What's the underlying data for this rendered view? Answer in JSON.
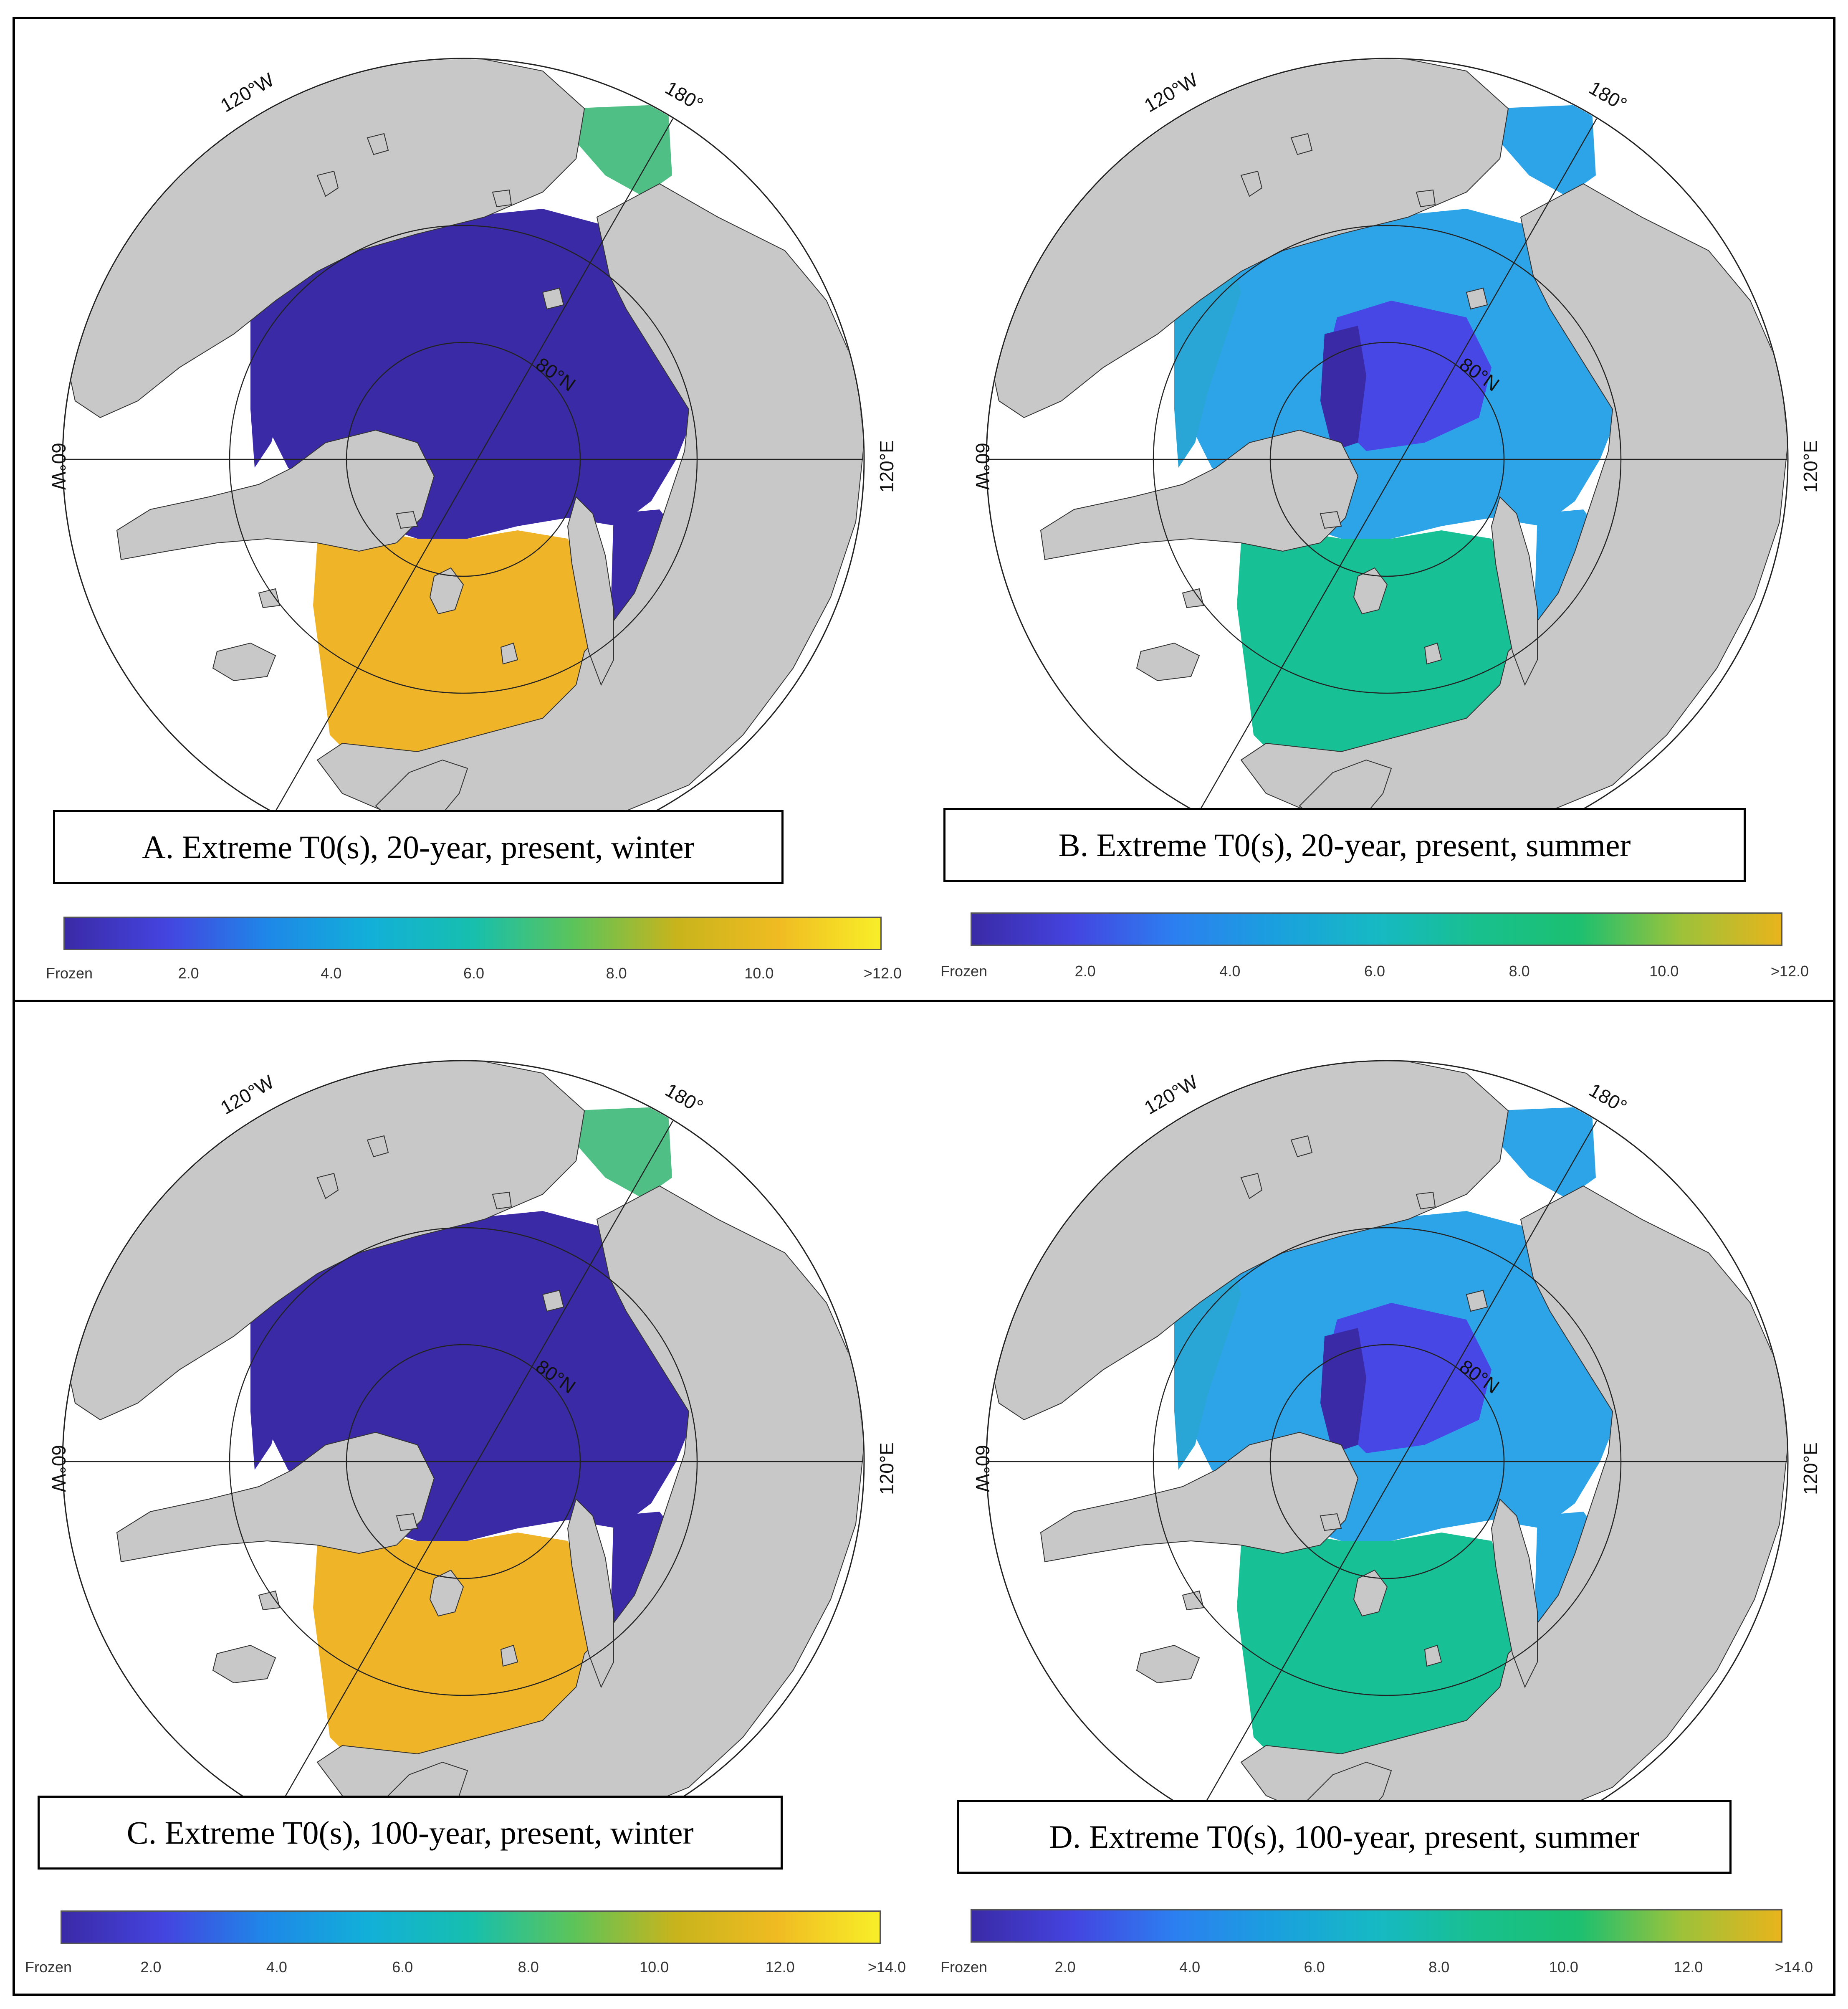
{
  "panels": [
    {
      "id": "A",
      "caption": "A. Extreme T0(s), 20-year, present, winter",
      "season": "winter",
      "labels": {
        "w120": "120°W",
        "lon180": "180°",
        "lat80": "80°N",
        "w60": "60°W",
        "e120": "120°E"
      },
      "colorbar": {
        "colors": [
          "#3a2aa6",
          "#4444e0",
          "#1e88e8",
          "#12b0d8",
          "#16bfae",
          "#5cc45a",
          "#c8b41c",
          "#f0bb22",
          "#f8ee28"
        ],
        "ticks": [
          "Frozen",
          "2.0",
          "4.0",
          "6.0",
          "8.0",
          "10.0",
          ">12.0"
        ]
      }
    },
    {
      "id": "B",
      "caption": "B. Extreme T0(s), 20-year, present, summer",
      "season": "summer",
      "labels": {
        "w120": "120°W",
        "lon180": "180°",
        "lat80": "80°N",
        "w60": "60°W",
        "e120": "120°E"
      },
      "colorbar": {
        "colors": [
          "#3a2aa6",
          "#4444e0",
          "#2c7ff0",
          "#1aa0de",
          "#16b9c4",
          "#18c08e",
          "#1cc070",
          "#9cc23a",
          "#e8b41c"
        ],
        "ticks": [
          "Frozen",
          "2.0",
          "4.0",
          "6.0",
          "8.0",
          "10.0",
          ">12.0"
        ]
      }
    },
    {
      "id": "C",
      "caption": "C. Extreme T0(s), 100-year, present, winter",
      "season": "winter",
      "labels": {
        "w120": "120°W",
        "lon180": "180°",
        "lat80": "80°N",
        "w60": "60°W",
        "e120": "120°E"
      },
      "colorbar": {
        "colors": [
          "#3a2aa6",
          "#4444e0",
          "#1e88e8",
          "#12b0d8",
          "#16bfae",
          "#5cc45a",
          "#c8b41c",
          "#f0bb22",
          "#f8ee28"
        ],
        "ticks": [
          "Frozen",
          "2.0",
          "4.0",
          "6.0",
          "8.0",
          "10.0",
          "12.0",
          ">14.0"
        ]
      }
    },
    {
      "id": "D",
      "caption": "D. Extreme T0(s), 100-year, present, summer",
      "season": "summer",
      "labels": {
        "w120": "120°W",
        "lon180": "180°",
        "lat80": "80°N",
        "w60": "60°W",
        "e120": "120°E"
      },
      "colorbar": {
        "colors": [
          "#3a2aa6",
          "#4444e0",
          "#2c7ff0",
          "#1aa0de",
          "#16b9c4",
          "#18c08e",
          "#1cc070",
          "#9cc23a",
          "#e8b41c"
        ],
        "ticks": [
          "Frozen",
          "2.0",
          "4.0",
          "6.0",
          "8.0",
          "10.0",
          "12.0",
          ">14.0"
        ]
      }
    }
  ],
  "colors": {
    "land": "#c8c8c8",
    "frozen": "#3a2aa6",
    "winter_warm": "#f0b428",
    "summer_open": "#18c096",
    "summer_blue": "#2ea4e8",
    "summer_core": "#4747e6"
  }
}
